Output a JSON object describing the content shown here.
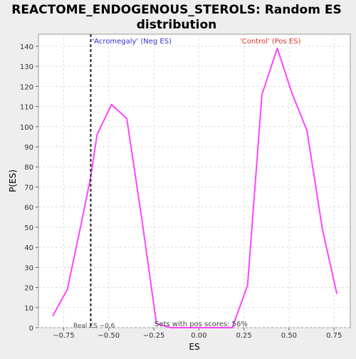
{
  "chart_data": {
    "type": "line",
    "title_line1": "REACTOME_ENDOGENOUS_STEROLS: Random ES",
    "title_line2": "distribution",
    "xlabel": "ES",
    "ylabel": "P(ES)",
    "xlim": [
      -0.89,
      0.84
    ],
    "ylim": [
      0,
      146
    ],
    "x_ticks": [
      -0.75,
      -0.5,
      -0.25,
      0.0,
      0.25,
      0.5,
      0.75
    ],
    "x_tick_labels": [
      "−0.75",
      "−0.50",
      "−0.25",
      "0.00",
      "0.25",
      "0.50",
      "0.75"
    ],
    "y_ticks": [
      0,
      10,
      20,
      30,
      40,
      50,
      60,
      70,
      80,
      90,
      100,
      110,
      120,
      130,
      140
    ],
    "grid": true,
    "series": [
      {
        "color": "#ff44ff",
        "x": [
          -0.81,
          -0.73,
          -0.65,
          -0.6,
          -0.565,
          -0.485,
          -0.4,
          -0.315,
          -0.235,
          -0.155,
          -0.07,
          0.015,
          0.1,
          0.185,
          0.27,
          0.35,
          0.435,
          0.515,
          0.6,
          0.685,
          0.765
        ],
        "y": [
          6,
          19,
          53,
          75,
          96,
          111,
          104,
          53,
          2,
          0,
          0,
          0,
          0,
          0,
          21,
          116,
          139,
          117,
          98,
          49,
          17
        ]
      }
    ],
    "real_es": -0.6,
    "real_es_label": "Real ES −0.6",
    "neg_label": "'Acromegaly' (Neg ES)",
    "pos_label": "'Control' (Pos ES)",
    "footnote": "Sets with pos scores: 56%",
    "colors": {
      "background": "#eeeeee",
      "plot_bg": "#ffffff",
      "line": "#ff44ff",
      "neg_label": "#3333cc",
      "pos_label": "#dd3333",
      "grid": "#dddddd"
    }
  }
}
